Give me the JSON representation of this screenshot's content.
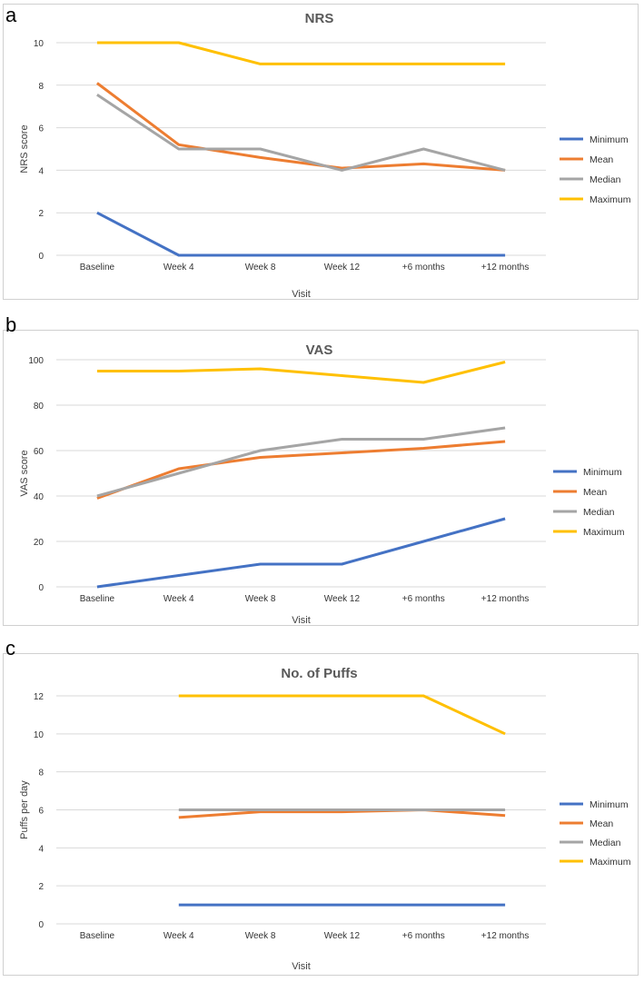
{
  "panels": [
    {
      "letter": "a",
      "chart_data": {
        "type": "line",
        "title": "NRS",
        "xlabel": "Visit",
        "ylabel": "NRS score",
        "categories": [
          "Baseline",
          "Week 4",
          "Week 8",
          "Week 12",
          "+6 months",
          "+12 months"
        ],
        "ylim": [
          0,
          10
        ],
        "yticks": [
          0,
          2,
          4,
          6,
          8,
          10
        ],
        "grid": true,
        "legend": "right",
        "series": [
          {
            "name": "Minimum",
            "color": "#4472C4",
            "values": [
              2,
              0,
              0,
              0,
              0,
              0
            ]
          },
          {
            "name": "Mean",
            "color": "#ED7D31",
            "values": [
              8.1,
              5.2,
              4.6,
              4.1,
              4.3,
              4.0
            ]
          },
          {
            "name": "Median",
            "color": "#A5A5A5",
            "values": [
              7.55,
              5,
              5,
              4,
              5,
              4
            ]
          },
          {
            "name": "Maximum",
            "color": "#FFC000",
            "values": [
              10,
              10,
              9,
              9,
              9,
              9
            ]
          }
        ]
      }
    },
    {
      "letter": "b",
      "chart_data": {
        "type": "line",
        "title": "VAS",
        "xlabel": "Visit",
        "ylabel": "VAS score",
        "categories": [
          "Baseline",
          "Week 4",
          "Week 8",
          "Week 12",
          "+6 months",
          "+12 months"
        ],
        "ylim": [
          0,
          100
        ],
        "yticks": [
          0,
          20,
          40,
          60,
          80,
          100
        ],
        "grid": true,
        "legend": "right",
        "series": [
          {
            "name": "Minimum",
            "color": "#4472C4",
            "values": [
              0,
              5,
              10,
              10,
              20,
              30
            ]
          },
          {
            "name": "Mean",
            "color": "#ED7D31",
            "values": [
              39,
              52,
              57,
              59,
              61,
              64
            ]
          },
          {
            "name": "Median",
            "color": "#A5A5A5",
            "values": [
              40,
              50,
              60,
              65,
              65,
              70
            ]
          },
          {
            "name": "Maximum",
            "color": "#FFC000",
            "values": [
              95,
              95,
              96,
              93,
              90,
              99
            ]
          }
        ]
      }
    },
    {
      "letter": "c",
      "chart_data": {
        "type": "line",
        "title": "No. of Puffs",
        "xlabel": "Visit",
        "ylabel": "Puffs per day",
        "categories": [
          "Baseline",
          "Week 4",
          "Week 8",
          "Week 12",
          "+6 months",
          "+12 months"
        ],
        "ylim": [
          0,
          12
        ],
        "yticks": [
          0,
          2,
          4,
          6,
          8,
          10,
          12
        ],
        "grid": true,
        "legend": "right",
        "series": [
          {
            "name": "Minimum",
            "color": "#4472C4",
            "values": [
              null,
              1,
              1,
              1,
              1,
              1
            ]
          },
          {
            "name": "Mean",
            "color": "#ED7D31",
            "values": [
              null,
              5.6,
              5.9,
              5.9,
              6.0,
              5.7
            ]
          },
          {
            "name": "Median",
            "color": "#A5A5A5",
            "values": [
              null,
              6,
              6,
              6,
              6,
              6
            ]
          },
          {
            "name": "Maximum",
            "color": "#FFC000",
            "values": [
              null,
              12,
              12,
              12,
              12,
              10
            ]
          }
        ]
      }
    }
  ]
}
